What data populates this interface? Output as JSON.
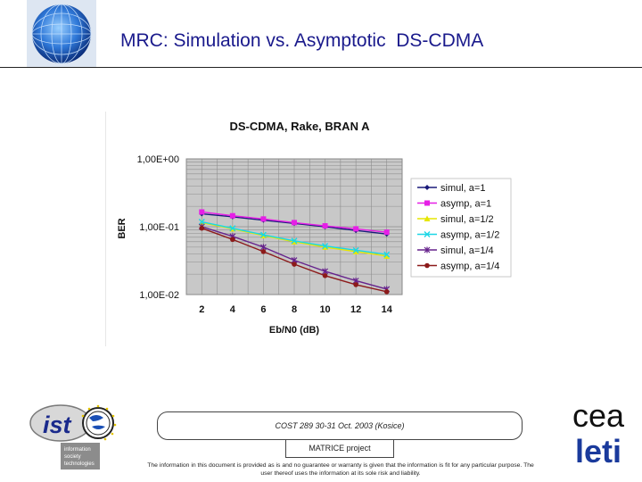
{
  "header": {
    "title": "MRC: Simulation vs. Asymptotic  DS-CDMA"
  },
  "chart_data": {
    "type": "line",
    "title": "DS-CDMA, Rake, BRAN A",
    "xlabel": "Eb/N0 (dB)",
    "ylabel": "BER",
    "yscale": "log",
    "ylim": [
      0.01,
      1
    ],
    "ytick_labels": [
      "1,00E+00",
      "1,00E-01",
      "1,00E-02"
    ],
    "x": [
      2,
      4,
      6,
      8,
      10,
      12,
      14
    ],
    "legend_position": "right",
    "grid": true,
    "series": [
      {
        "name": "simul, a=1",
        "color": "#1a1a7a",
        "marker": "diamond",
        "values": [
          0.155,
          0.14,
          0.125,
          0.112,
          0.1,
          0.088,
          0.078
        ]
      },
      {
        "name": "asymp, a=1",
        "color": "#e61fe6",
        "marker": "square",
        "values": [
          0.165,
          0.145,
          0.13,
          0.115,
          0.103,
          0.093,
          0.083
        ]
      },
      {
        "name": "simul, a=1/2",
        "color": "#e6e600",
        "marker": "triangle",
        "values": [
          0.115,
          0.093,
          0.074,
          0.06,
          0.05,
          0.043,
          0.037
        ]
      },
      {
        "name": "asymp, a=1/2",
        "color": "#1ad6e6",
        "marker": "x",
        "values": [
          0.118,
          0.095,
          0.076,
          0.062,
          0.052,
          0.045,
          0.039
        ]
      },
      {
        "name": "simul, a=1/4",
        "color": "#66228c",
        "marker": "star",
        "values": [
          0.1,
          0.072,
          0.05,
          0.032,
          0.022,
          0.016,
          0.012
        ]
      },
      {
        "name": "asymp, a=1/4",
        "color": "#8c1a1a",
        "marker": "circle",
        "values": [
          0.095,
          0.065,
          0.043,
          0.028,
          0.019,
          0.014,
          0.011
        ]
      }
    ]
  },
  "logos": {
    "ist_text": "ist",
    "ist_caption_1": "information",
    "ist_caption_2": "society",
    "ist_caption_3": "technologies",
    "cea_text": "cea",
    "leti_text": "leti"
  },
  "footer": {
    "conference": "COST 289 30-31 Oct. 2003 (Kosice)",
    "project": "MATRICE project",
    "disclaimer": "The information in this document is provided as is and no guarantee or warranty is given that the information is fit for any particular purpose. The user thereof uses the information at its sole risk and liability."
  }
}
